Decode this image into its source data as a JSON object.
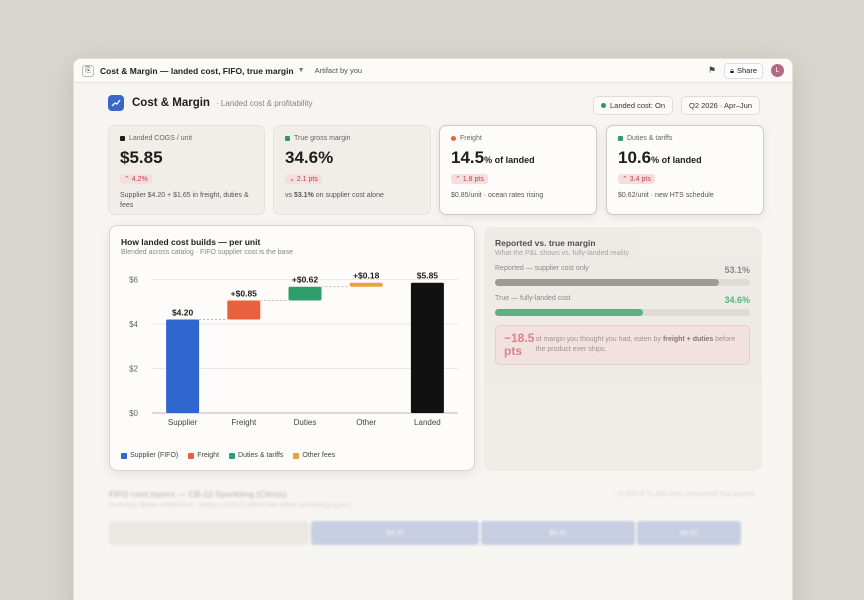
{
  "window": {
    "app_icon": "⎘",
    "title": "Cost & Margin — landed cost, FIFO, true margin",
    "artifact_label": "Artifact by you",
    "share_label": "Share",
    "avatar_initial": "L"
  },
  "header": {
    "title": "Cost & Margin",
    "subtitle": "· Landed cost & profitability",
    "status": "Landed cost: On",
    "period": "Q2 2026 · Apr–Jun"
  },
  "kpis": [
    {
      "label": "Landed COGS / unit",
      "value": "$5.85",
      "unit": "",
      "delta": "⌃ 4.2%",
      "note": "Supplier $4.20 + $1.65 in freight, duties & fees",
      "color": "#1f1d1a"
    },
    {
      "label": "True gross margin",
      "value": "34.6%",
      "unit": "",
      "delta": "⌄ 2.1 pts",
      "note_pre": "vs ",
      "note_bold": "53.1%",
      "note_post": " on supplier cost alone",
      "color": "#2c9a5a"
    },
    {
      "label": "Freight",
      "value": "14.5",
      "unit": "% of landed",
      "delta": "⌃ 1.8 pts",
      "note": "$0.85/unit · ocean rates rising",
      "color": "#e8603c"
    },
    {
      "label": "Duties & tariffs",
      "value": "10.6",
      "unit": "% of landed",
      "delta": "⌃ 3.4 pts",
      "note": "$0.62/unit · new HTS schedule",
      "color": "#2e9e6a"
    }
  ],
  "chart": {
    "title": "How landed cost builds — per unit",
    "subtitle": "Blended across catalog · FIFO supplier cost is the base"
  },
  "chart_data": {
    "type": "bar",
    "subtype": "waterfall",
    "categories": [
      "Supplier",
      "Freight",
      "Duties",
      "Other",
      "Landed"
    ],
    "values": [
      4.2,
      0.85,
      0.62,
      0.18,
      5.85
    ],
    "bases": [
      0,
      4.2,
      5.05,
      5.67,
      0
    ],
    "labels": [
      "$4.20",
      "+$0.85",
      "+$0.62",
      "+$0.18",
      "$5.85"
    ],
    "colors": [
      "#2f67cf",
      "#e8603c",
      "#2e9e6a",
      "#eba23a",
      "#111111"
    ],
    "y_ticks": [
      "$0",
      "$2",
      "$4",
      "$6"
    ],
    "ylim": [
      0,
      6.6
    ],
    "legend": [
      {
        "name": "Supplier (FIFO)",
        "color": "#2f67cf"
      },
      {
        "name": "Freight",
        "color": "#e8603c"
      },
      {
        "name": "Duties & tariffs",
        "color": "#2e9e6a"
      },
      {
        "name": "Other fees",
        "color": "#eba23a"
      }
    ]
  },
  "margin": {
    "title": "Reported vs. true margin",
    "subtitle": "What the P&L shows vs. fully-landed reality",
    "rows": [
      {
        "label": "Reported — supplier cost only",
        "value": "53.1%",
        "fraction": 0.88,
        "color": "#8f8b85"
      },
      {
        "label": "True — fully-landed cost",
        "value": "34.6%",
        "fraction": 0.58,
        "color": "#3fa86a"
      }
    ],
    "callout_big": "−18.5 pts",
    "callout_pre": "of margin you thought you had, eaten by ",
    "callout_bold": "freight + duties",
    "callout_post": " before the product ever ships."
  },
  "fifo": {
    "title": "FIFO cost layers — CB-12 Sparkling (Citrus)",
    "subtitle": "Inventory drawn oldest-first · today's COGS reflect the oldest remaining layers",
    "right_note": "↑ 8,300 of 11,450 units consumed this quarter",
    "layers": [
      "",
      "$4.20",
      "$4.45",
      "$4.62"
    ]
  }
}
